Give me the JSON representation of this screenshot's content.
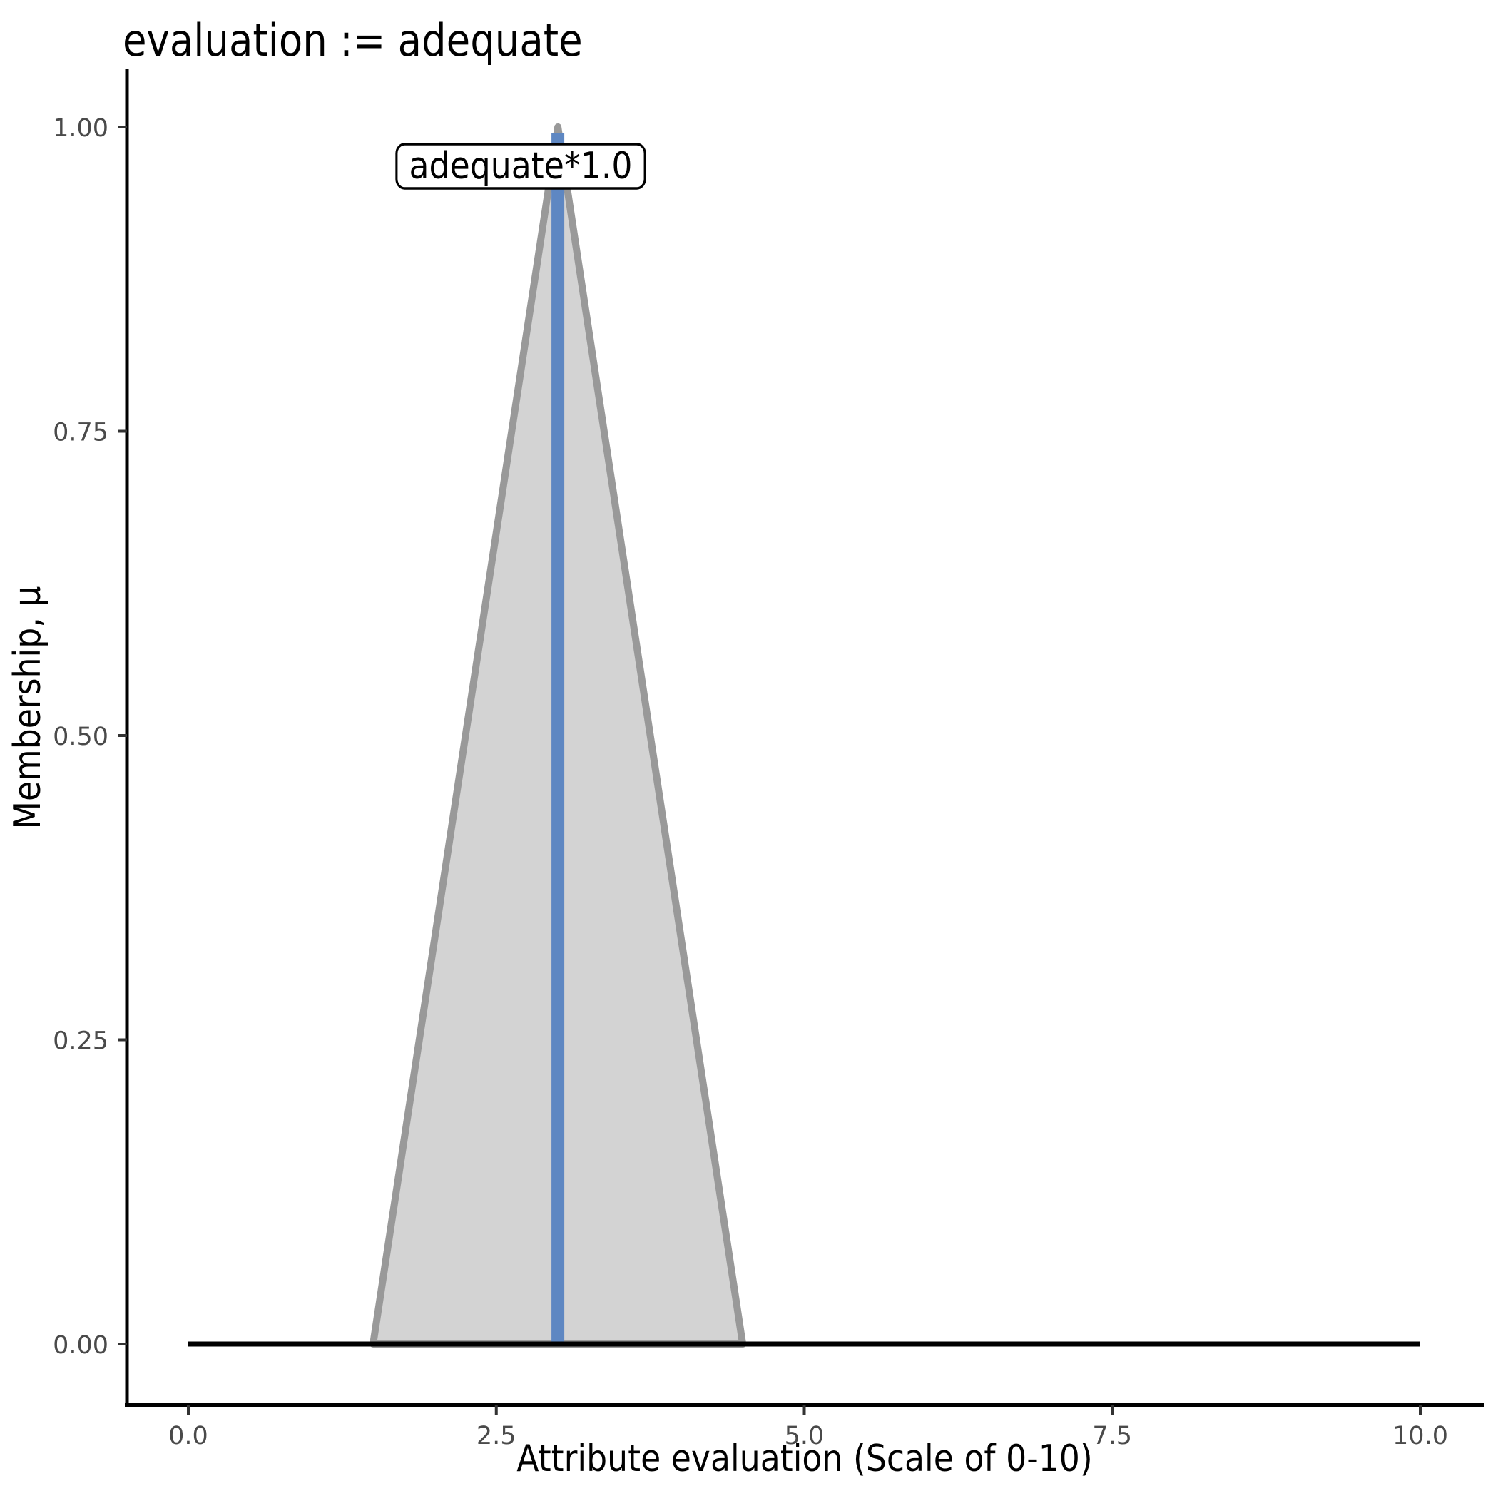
{
  "chart_data": {
    "type": "area",
    "title": "evaluation := adequate",
    "xlabel": "Attribute evaluation (Scale of 0-10)",
    "ylabel": "Membership, μ",
    "xlim": [
      0,
      10
    ],
    "ylim": [
      0,
      1
    ],
    "grid": false,
    "legend": false,
    "xticks": {
      "values": [
        0,
        2.5,
        5,
        7.5,
        10
      ],
      "labels": [
        "0.0",
        "2.5",
        "5.0",
        "7.5",
        "10.0"
      ]
    },
    "yticks": {
      "values": [
        0,
        0.25,
        0.5,
        0.75,
        1
      ],
      "labels": [
        "0.00",
        "0.25",
        "0.50",
        "0.75",
        "1.00"
      ]
    },
    "series": [
      {
        "name": "adequate-membership-triangle",
        "type": "area",
        "points": [
          [
            1.5,
            0
          ],
          [
            3.0,
            1.0
          ],
          [
            4.5,
            0
          ]
        ],
        "fill": "#D3D3D3",
        "stroke": "#999999",
        "stroke_width": 10
      },
      {
        "name": "activation-vline",
        "type": "vline",
        "x": 3.0,
        "y0": 0,
        "y1": 1.0,
        "color": "#5E87C2",
        "width": 18
      },
      {
        "name": "zero-membership-baseline",
        "type": "hline",
        "y": 0,
        "x0": 0,
        "x1": 10,
        "color": "#000000",
        "width": 7
      }
    ],
    "annotation": {
      "text": "adequate*1.0",
      "x": 2.7,
      "y": 0.968
    }
  },
  "colors": {
    "background": "#ffffff",
    "axis_line": "#000000",
    "tick_mark": "#333333",
    "tick_label": "#4a4a4a",
    "annotation_bg": "#ffffff",
    "annotation_border": "#000000"
  }
}
